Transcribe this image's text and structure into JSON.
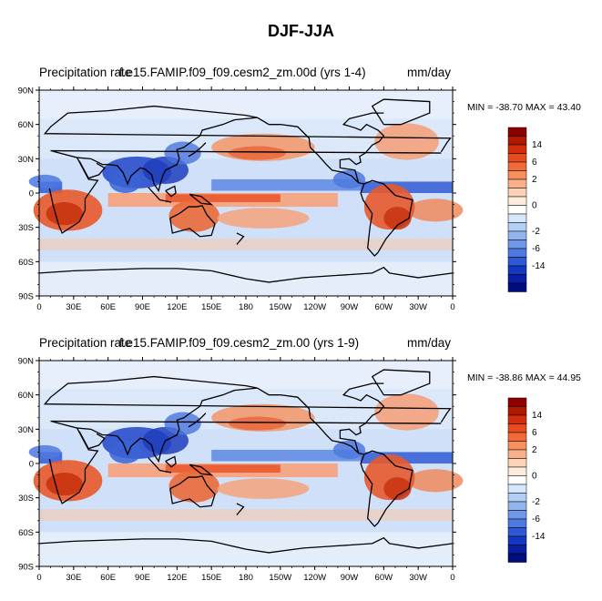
{
  "title": "DJF-JJA",
  "panels": [
    {
      "left_label": "Precipitation rate",
      "center_label": "f.e15.FAMIP.f09_f09.cesm2_zm.00d (yrs 1-4)",
      "right_label": "mm/day",
      "minmax": "MIN = -38.70 MAX =  43.40"
    },
    {
      "left_label": "Precipitation rate",
      "center_label": "f.e15.FAMIP.f09_f09.cesm2_zm.00 (yrs 1-9)",
      "right_label": "mm/day",
      "minmax": "MIN = -38.86 MAX =  44.95"
    }
  ],
  "lat_ticks": [
    "90N",
    "60N",
    "30N",
    "0",
    "30S",
    "60S",
    "90S"
  ],
  "lon_ticks": [
    "0",
    "30E",
    "60E",
    "90E",
    "120E",
    "150E",
    "180",
    "150W",
    "120W",
    "90W",
    "60W",
    "30W",
    "0"
  ],
  "colorbar": {
    "labels": [
      "14",
      "6",
      "2",
      "0",
      "-2",
      "-6",
      "-14"
    ],
    "colors": [
      "#8c0000",
      "#b01b00",
      "#d42d0c",
      "#e84c1e",
      "#f26a38",
      "#f7905a",
      "#fab088",
      "#fdd2b6",
      "#fdecdd",
      "#ffffff",
      "#d6e6fb",
      "#b4cff6",
      "#92b5f0",
      "#6f98e8",
      "#4e79df",
      "#2f59d4",
      "#1437c3",
      "#0a1ea3",
      "#000d7e"
    ]
  }
}
